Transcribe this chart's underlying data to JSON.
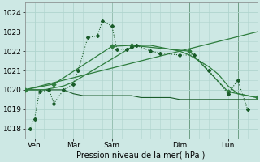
{
  "bg_color": "#cde8e4",
  "grid_color": "#b0d4ce",
  "line_color_dark": "#1a5c2a",
  "line_color_mid": "#2e7d3e",
  "xlim": [
    0,
    24
  ],
  "ylim": [
    1017.5,
    1024.5
  ],
  "yticks": [
    1018,
    1019,
    1020,
    1021,
    1022,
    1023,
    1024
  ],
  "x_tick_positions": [
    1,
    5,
    9,
    11,
    16,
    21
  ],
  "x_tick_labels": [
    "Ven",
    "Mar",
    "Sam",
    "",
    "Dim",
    "Lun"
  ],
  "vline_positions": [
    3,
    9,
    11,
    17,
    22
  ],
  "xlabel": "Pression niveau de la mer( hPa )",
  "series_dotted_x": [
    0.5,
    1.0,
    1.5,
    2.5,
    3.0,
    4.0,
    5.0,
    5.5,
    6.5,
    7.5,
    8.0,
    9.0,
    9.5,
    10.5,
    11.0,
    11.5,
    13.0,
    14.0,
    16.0,
    17.5,
    19.0,
    21.0,
    22.0,
    23.0
  ],
  "series_dotted_y": [
    1018.0,
    1018.5,
    1019.9,
    1020.0,
    1019.3,
    1020.0,
    1020.3,
    1021.0,
    1022.7,
    1022.8,
    1023.55,
    1023.3,
    1022.1,
    1022.1,
    1022.2,
    1022.3,
    1022.0,
    1021.9,
    1021.8,
    1021.8,
    1021.0,
    1019.8,
    1020.5,
    1019.0
  ],
  "series_flat_x": [
    0,
    3,
    4,
    5,
    6,
    7,
    8,
    9,
    10,
    11,
    12,
    13,
    14,
    15,
    16,
    17,
    18,
    19,
    20,
    21,
    22,
    23,
    24
  ],
  "series_flat_y": [
    1020.0,
    1020.0,
    1020.0,
    1019.8,
    1019.7,
    1019.7,
    1019.7,
    1019.7,
    1019.7,
    1019.7,
    1019.6,
    1019.6,
    1019.6,
    1019.6,
    1019.5,
    1019.5,
    1019.5,
    1019.5,
    1019.5,
    1019.5,
    1019.5,
    1019.5,
    1019.5
  ],
  "series_smooth_x": [
    0,
    1,
    2,
    3,
    4,
    5,
    6,
    7,
    8,
    9,
    10,
    11,
    12,
    13,
    14,
    15,
    16,
    17,
    18,
    19,
    20,
    21,
    22,
    23,
    24
  ],
  "series_smooth_y": [
    1020.0,
    1020.0,
    1020.0,
    1020.1,
    1020.2,
    1020.4,
    1020.7,
    1021.0,
    1021.3,
    1021.6,
    1021.9,
    1022.2,
    1022.3,
    1022.3,
    1022.2,
    1022.1,
    1022.0,
    1021.8,
    1021.5,
    1021.2,
    1020.8,
    1020.2,
    1019.8,
    1019.7,
    1019.6
  ],
  "series_marked_x": [
    0,
    3,
    9,
    11,
    17,
    21,
    24
  ],
  "series_marked_y": [
    1020.0,
    1020.3,
    1022.25,
    1022.3,
    1022.0,
    1019.9,
    1019.6
  ],
  "series_trend_x": [
    0,
    24
  ],
  "series_trend_y": [
    1020.0,
    1023.0
  ]
}
